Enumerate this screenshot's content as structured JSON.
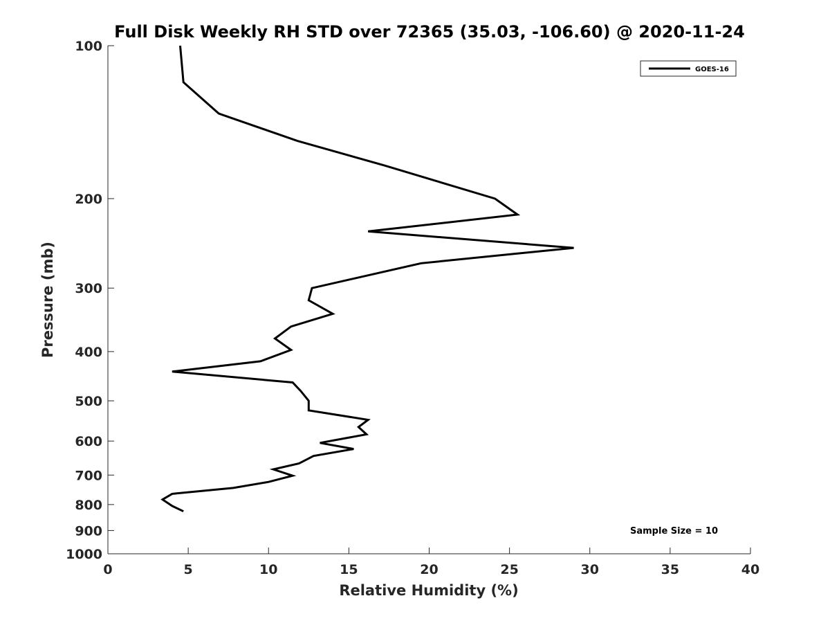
{
  "chart_data": {
    "type": "line",
    "title": "Full Disk Weekly RH STD over 72365 (35.03, -106.60) @ 2020-11-24",
    "xlabel": "Relative Humidity (%)",
    "ylabel": "Pressure (mb)",
    "xlim": [
      0,
      40
    ],
    "ylim": [
      1000,
      100
    ],
    "yscale": "log",
    "grid": false,
    "legend_position": "top-right",
    "x_ticks": [
      0,
      5,
      10,
      15,
      20,
      25,
      30,
      35,
      40
    ],
    "y_ticks": [
      100,
      200,
      300,
      400,
      500,
      600,
      700,
      800,
      900,
      1000
    ],
    "annotation": "Sample Size = 10",
    "series": [
      {
        "name": "GOES-16",
        "color": "#000000",
        "points": [
          {
            "x": 4.5,
            "y": 100
          },
          {
            "x": 4.7,
            "y": 118
          },
          {
            "x": 6.9,
            "y": 136
          },
          {
            "x": 11.8,
            "y": 154
          },
          {
            "x": 17.2,
            "y": 172
          },
          {
            "x": 24.1,
            "y": 200
          },
          {
            "x": 25.5,
            "y": 215
          },
          {
            "x": 16.2,
            "y": 232
          },
          {
            "x": 29.0,
            "y": 250
          },
          {
            "x": 19.5,
            "y": 268
          },
          {
            "x": 12.7,
            "y": 300
          },
          {
            "x": 12.5,
            "y": 317
          },
          {
            "x": 14.0,
            "y": 337
          },
          {
            "x": 11.4,
            "y": 357
          },
          {
            "x": 10.4,
            "y": 377
          },
          {
            "x": 11.4,
            "y": 397
          },
          {
            "x": 9.5,
            "y": 418
          },
          {
            "x": 4.0,
            "y": 438
          },
          {
            "x": 11.5,
            "y": 460
          },
          {
            "x": 12.0,
            "y": 478
          },
          {
            "x": 12.5,
            "y": 500
          },
          {
            "x": 12.5,
            "y": 522
          },
          {
            "x": 16.2,
            "y": 545
          },
          {
            "x": 15.6,
            "y": 563
          },
          {
            "x": 16.1,
            "y": 582
          },
          {
            "x": 13.2,
            "y": 605
          },
          {
            "x": 15.3,
            "y": 622
          },
          {
            "x": 12.8,
            "y": 642
          },
          {
            "x": 11.9,
            "y": 664
          },
          {
            "x": 10.3,
            "y": 682
          },
          {
            "x": 11.5,
            "y": 702
          },
          {
            "x": 10.0,
            "y": 722
          },
          {
            "x": 7.8,
            "y": 742
          },
          {
            "x": 4.0,
            "y": 762
          },
          {
            "x": 3.4,
            "y": 782
          },
          {
            "x": 4.0,
            "y": 805
          },
          {
            "x": 4.7,
            "y": 825
          }
        ]
      }
    ]
  }
}
